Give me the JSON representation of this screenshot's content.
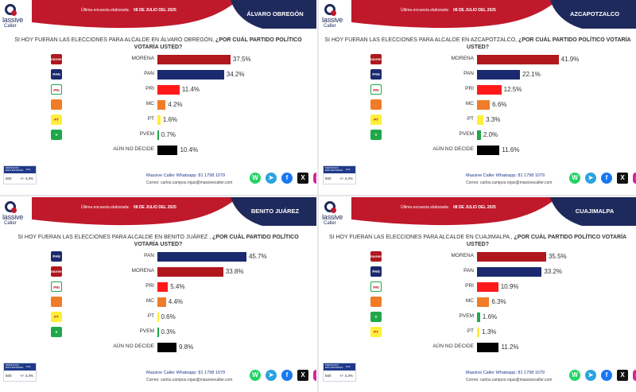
{
  "brand": {
    "line1": "lassive",
    "line2": "Caller"
  },
  "header": {
    "label": "Última encuesta elaborada:",
    "date": "08 DE JULIO DEL 2025"
  },
  "footer": {
    "table_head_1": "PERSONAS ENCUESTADAS",
    "table_head_2": "M.E.",
    "table_val_1": "500",
    "table_val_2": "+/- 4.3%",
    "contact_1": "Massive Caller Whatsapp: 81 1798 1079",
    "contact_2": "Correo: carlos.campos.rojas@massivecaller.com"
  },
  "colors": {
    "navy": "#1f2a5c",
    "red": "#c0192b",
    "morena": "#b0181e",
    "pan": "#1b2a6e",
    "pri": "#ff1a1a",
    "mc": "#f07c28",
    "pt": "#ffef3a",
    "pvem": "#1fa84a",
    "undecided": "#000000"
  },
  "party_icons": {
    "MORENA": {
      "name": "morena-logo-icon",
      "text": "morena",
      "bg": "#b0181e",
      "fg": "#ffffff"
    },
    "PAN": {
      "name": "pan-logo-icon",
      "text": "PAN",
      "bg": "#1b2a6e",
      "fg": "#ffffff"
    },
    "PRI": {
      "name": "pri-logo-icon",
      "text": "PRI",
      "bg": "#ffffff",
      "fg": "#c0192b"
    },
    "MC": {
      "name": "mc-logo-icon",
      "text": "",
      "bg": "#f07c28",
      "fg": "#ffffff"
    },
    "PT": {
      "name": "pt-logo-icon",
      "text": "PT",
      "bg": "#ffef3a",
      "fg": "#c0192b"
    },
    "PVEM": {
      "name": "pvem-logo-icon",
      "text": "V",
      "bg": "#1fa84a",
      "fg": "#ffffff"
    }
  },
  "chart_data": [
    {
      "type": "bar",
      "place": "ÁLVARO OBREGÓN",
      "question_plain": "SI HOY FUERAN LAS ELECCIONES PARA ALCALDE EN ÁLVARO OBREGÓN,",
      "question_bold": "¿POR CUÁL PARTIDO POLÍTICO VOTARÍA USTED?",
      "categories": [
        "MORENA",
        "PAN",
        "PRI",
        "MC",
        "PT",
        "PVEM",
        "AÚN NO DECIDE"
      ],
      "values": [
        37.5,
        34.2,
        11.4,
        4.2,
        1.6,
        0.7,
        10.4
      ],
      "labels": [
        "37.5%",
        "34.2%",
        "11.4%",
        "4.2%",
        "1.6%",
        "0.7%",
        "10.4%"
      ],
      "colors": [
        "#b0181e",
        "#1b2a6e",
        "#ff1a1a",
        "#f07c28",
        "#ffef3a",
        "#1fa84a",
        "#000000"
      ],
      "icons": [
        "MORENA",
        "PAN",
        "PRI",
        "MC",
        "PT",
        "PVEM",
        null
      ]
    },
    {
      "type": "bar",
      "place": "AZCAPOTZALCO",
      "question_plain": "SI HOY FUERAN LAS ELECCIONES PARA ALCALDE EN AZCAPOTZALCO,",
      "question_bold": "¿POR CUÁL PARTIDO POLÍTICO VOTARÍA USTED?",
      "categories": [
        "MORENA",
        "PAN",
        "PRI",
        "MC",
        "PT",
        "PVEM",
        "AÚN NO DECIDE"
      ],
      "values": [
        41.9,
        22.1,
        12.5,
        6.6,
        3.3,
        2.0,
        11.6
      ],
      "labels": [
        "41.9%",
        "22.1%",
        "12.5%",
        "6.6%",
        "3.3%",
        "2.0%",
        "11.6%"
      ],
      "colors": [
        "#b0181e",
        "#1b2a6e",
        "#ff1a1a",
        "#f07c28",
        "#ffef3a",
        "#1fa84a",
        "#000000"
      ],
      "icons": [
        "MORENA",
        "PAN",
        "PRI",
        "MC",
        "PT",
        "PVEM",
        null
      ]
    },
    {
      "type": "bar",
      "place": "BENITO JUÁREZ",
      "question_plain": "SI HOY FUERAN LAS ELECCIONES PARA ALCALDE EN BENITO JUÁREZ ,",
      "question_bold": "¿POR CUÁL PARTIDO POLÍTICO VOTARÍA USTED?",
      "categories": [
        "PAN",
        "MORENA",
        "PRI",
        "MC",
        "PT",
        "PVEM",
        "AÚN NO DECIDE"
      ],
      "values": [
        45.7,
        33.8,
        5.4,
        4.4,
        0.6,
        0.3,
        9.8
      ],
      "labels": [
        "45.7%",
        "33.8%",
        "5.4%",
        "4.4%",
        "0.6%",
        "0.3%",
        "9.8%"
      ],
      "colors": [
        "#1b2a6e",
        "#b0181e",
        "#ff1a1a",
        "#f07c28",
        "#ffef3a",
        "#1fa84a",
        "#000000"
      ],
      "icons": [
        "PAN",
        "MORENA",
        "PRI",
        "MC",
        "PT",
        "PVEM",
        null
      ]
    },
    {
      "type": "bar",
      "place": "CUAJIMALPA",
      "question_plain": "SI HOY FUERAN LAS ELECCIONES PARA ALCALDE EN CUAJIMALPA ,",
      "question_bold": "¿POR CUÁL PARTIDO POLÍTICO VOTARÍA USTED?",
      "categories": [
        "MORENA",
        "PAN",
        "PRI",
        "MC",
        "PVEM",
        "PT",
        "AÚN NO DECIDE"
      ],
      "values": [
        35.5,
        33.2,
        10.9,
        6.3,
        1.6,
        1.3,
        11.2
      ],
      "labels": [
        "35.5%",
        "33.2%",
        "10.9%",
        "6.3%",
        "1.6%",
        "1.3%",
        "11.2%"
      ],
      "colors": [
        "#b0181e",
        "#1b2a6e",
        "#ff1a1a",
        "#f07c28",
        "#1fa84a",
        "#ffef3a",
        "#000000"
      ],
      "icons": [
        "MORENA",
        "PAN",
        "PRI",
        "MC",
        "PVEM",
        "PT",
        null
      ]
    }
  ],
  "socials": [
    {
      "name": "whatsapp-icon",
      "glyph": "W",
      "color": "#25d366"
    },
    {
      "name": "telegram-icon",
      "glyph": "➤",
      "color": "#2aa3de"
    },
    {
      "name": "facebook-icon",
      "glyph": "f",
      "color": "#1877f2"
    },
    {
      "name": "x-icon",
      "glyph": "X",
      "color": "#111111"
    },
    {
      "name": "instagram-icon",
      "glyph": "◎",
      "color": "#d6249f"
    }
  ]
}
